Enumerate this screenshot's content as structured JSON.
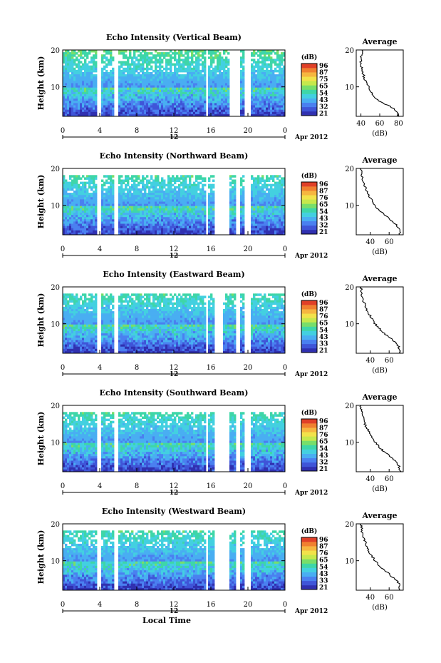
{
  "chart_data": [
    {
      "type": "heatmap",
      "title": "Echo Intensity (Vertical Beam)",
      "ylabel": "Height (km)",
      "xlim": [
        0,
        24
      ],
      "ylim": [
        2,
        20
      ],
      "xticks": [
        "0",
        "4",
        "8",
        "12",
        "16",
        "20",
        "0"
      ],
      "yticks": [
        "10",
        "20"
      ],
      "date_label": "Apr 2012",
      "day_marker": "12",
      "colorbar": {
        "title": "(dB)",
        "ticks": [
          "96",
          "87",
          "75",
          "65",
          "54",
          "43",
          "32",
          "21"
        ]
      },
      "data_gaps_hours": [
        [
          3.6,
          4.1
        ],
        [
          5.5,
          5.9
        ],
        [
          15.4,
          15.8
        ],
        [
          18.0,
          19.2
        ],
        [
          19.6,
          20.4
        ]
      ],
      "profile": {
        "title": "Average",
        "xlabel": "(dB)",
        "xticks": [
          "40",
          "60",
          "80"
        ],
        "xlim": [
          35,
          85
        ],
        "yticks": [
          "10",
          "20"
        ],
        "height_km": [
          2,
          4,
          6,
          8,
          10,
          12,
          14,
          16,
          18,
          20
        ],
        "values_db": [
          80,
          76,
          60,
          52,
          48,
          44,
          42,
          40,
          40,
          42
        ]
      }
    },
    {
      "type": "heatmap",
      "title": "Echo Intensity (Northward Beam)",
      "ylabel": "Height (km)",
      "xlim": [
        0,
        24
      ],
      "ylim": [
        2,
        20
      ],
      "xticks": [
        "0",
        "4",
        "8",
        "12",
        "16",
        "20",
        "0"
      ],
      "yticks": [
        "10",
        "20"
      ],
      "date_label": "Apr 2012",
      "day_marker": "12",
      "colorbar": {
        "title": "(dB)",
        "ticks": [
          "96",
          "87",
          "76",
          "65",
          "54",
          "43",
          "32",
          "21"
        ]
      },
      "data_gaps_hours": [
        [
          3.6,
          4.1
        ],
        [
          5.5,
          5.9
        ],
        [
          15.4,
          15.8
        ],
        [
          16.3,
          18.1
        ],
        [
          18.6,
          19.2
        ],
        [
          19.6,
          20.4
        ]
      ],
      "profile": {
        "title": "Average",
        "xlabel": "(dB)",
        "xticks": [
          "40",
          "60"
        ],
        "xlim": [
          25,
          75
        ],
        "yticks": [
          "10",
          "20"
        ],
        "height_km": [
          2,
          4,
          6,
          8,
          10,
          12,
          14,
          16,
          18,
          20
        ],
        "values_db": [
          72,
          70,
          62,
          52,
          45,
          40,
          36,
          33,
          31,
          30
        ]
      }
    },
    {
      "type": "heatmap",
      "title": "Echo Intensity (Eastward Beam)",
      "ylabel": "Height (km)",
      "xlim": [
        0,
        24
      ],
      "ylim": [
        2,
        20
      ],
      "xticks": [
        "0",
        "4",
        "8",
        "12",
        "16",
        "20",
        "0"
      ],
      "yticks": [
        "10",
        "20"
      ],
      "date_label": "Apr 2012",
      "day_marker": "12",
      "colorbar": {
        "title": "(dB)",
        "ticks": [
          "96",
          "87",
          "76",
          "65",
          "54",
          "43",
          "33",
          "21"
        ]
      },
      "data_gaps_hours": [
        [
          3.6,
          4.1
        ],
        [
          5.5,
          5.9
        ],
        [
          15.4,
          15.8
        ],
        [
          16.3,
          17.4
        ],
        [
          18.6,
          19.2
        ],
        [
          19.6,
          20.4
        ]
      ],
      "profile": {
        "title": "Average",
        "xlabel": "(dB)",
        "xticks": [
          "40",
          "60"
        ],
        "xlim": [
          25,
          75
        ],
        "yticks": [
          "10",
          "20"
        ],
        "height_km": [
          2,
          4,
          6,
          8,
          10,
          12,
          14,
          16,
          18,
          20
        ],
        "values_db": [
          72,
          70,
          62,
          52,
          45,
          40,
          36,
          33,
          31,
          30
        ]
      }
    },
    {
      "type": "heatmap",
      "title": "Echo Intensity (Southward Beam)",
      "ylabel": "Height (km)",
      "xlim": [
        0,
        24
      ],
      "ylim": [
        2,
        20
      ],
      "xticks": [
        "0",
        "4",
        "8",
        "12",
        "16",
        "20",
        "0"
      ],
      "yticks": [
        "10",
        "20"
      ],
      "date_label": "Apr 2012",
      "day_marker": "12",
      "colorbar": {
        "title": "(dB)",
        "ticks": [
          "96",
          "87",
          "76",
          "65",
          "54",
          "43",
          "32",
          "21"
        ]
      },
      "data_gaps_hours": [
        [
          3.6,
          4.1
        ],
        [
          5.5,
          5.9
        ],
        [
          15.4,
          15.8
        ],
        [
          16.3,
          18.1
        ],
        [
          18.6,
          19.2
        ],
        [
          19.6,
          20.4
        ]
      ],
      "profile": {
        "title": "Average",
        "xlabel": "(dB)",
        "xticks": [
          "40",
          "60"
        ],
        "xlim": [
          25,
          75
        ],
        "yticks": [
          "10",
          "20"
        ],
        "height_km": [
          2,
          4,
          6,
          8,
          10,
          12,
          14,
          16,
          18,
          20
        ],
        "values_db": [
          72,
          70,
          62,
          52,
          45,
          40,
          36,
          33,
          31,
          30
        ]
      }
    },
    {
      "type": "heatmap",
      "title": "Echo Intensity (Westward Beam)",
      "ylabel": "Height (km)",
      "xlim": [
        0,
        24
      ],
      "ylim": [
        2,
        20
      ],
      "xticks": [
        "0",
        "4",
        "8",
        "12",
        "16",
        "20",
        "0"
      ],
      "yticks": [
        "10",
        "20"
      ],
      "date_label": "Apr 2012",
      "day_marker": "12",
      "xlabel": "Local Time",
      "colorbar": {
        "title": "(dB)",
        "ticks": [
          "96",
          "87",
          "76",
          "65",
          "54",
          "43",
          "33",
          "21"
        ]
      },
      "data_gaps_hours": [
        [
          3.6,
          4.1
        ],
        [
          5.5,
          5.9
        ],
        [
          15.4,
          15.8
        ],
        [
          16.3,
          18.1
        ],
        [
          18.6,
          19.2
        ],
        [
          19.6,
          20.4
        ]
      ],
      "profile": {
        "title": "Average",
        "xlabel": "(dB)",
        "xticks": [
          "40",
          "60"
        ],
        "xlim": [
          25,
          75
        ],
        "yticks": [
          "10",
          "20"
        ],
        "height_km": [
          2,
          4,
          6,
          8,
          10,
          12,
          14,
          16,
          18,
          20
        ],
        "values_db": [
          72,
          70,
          62,
          52,
          45,
          40,
          36,
          33,
          31,
          30
        ]
      }
    }
  ]
}
